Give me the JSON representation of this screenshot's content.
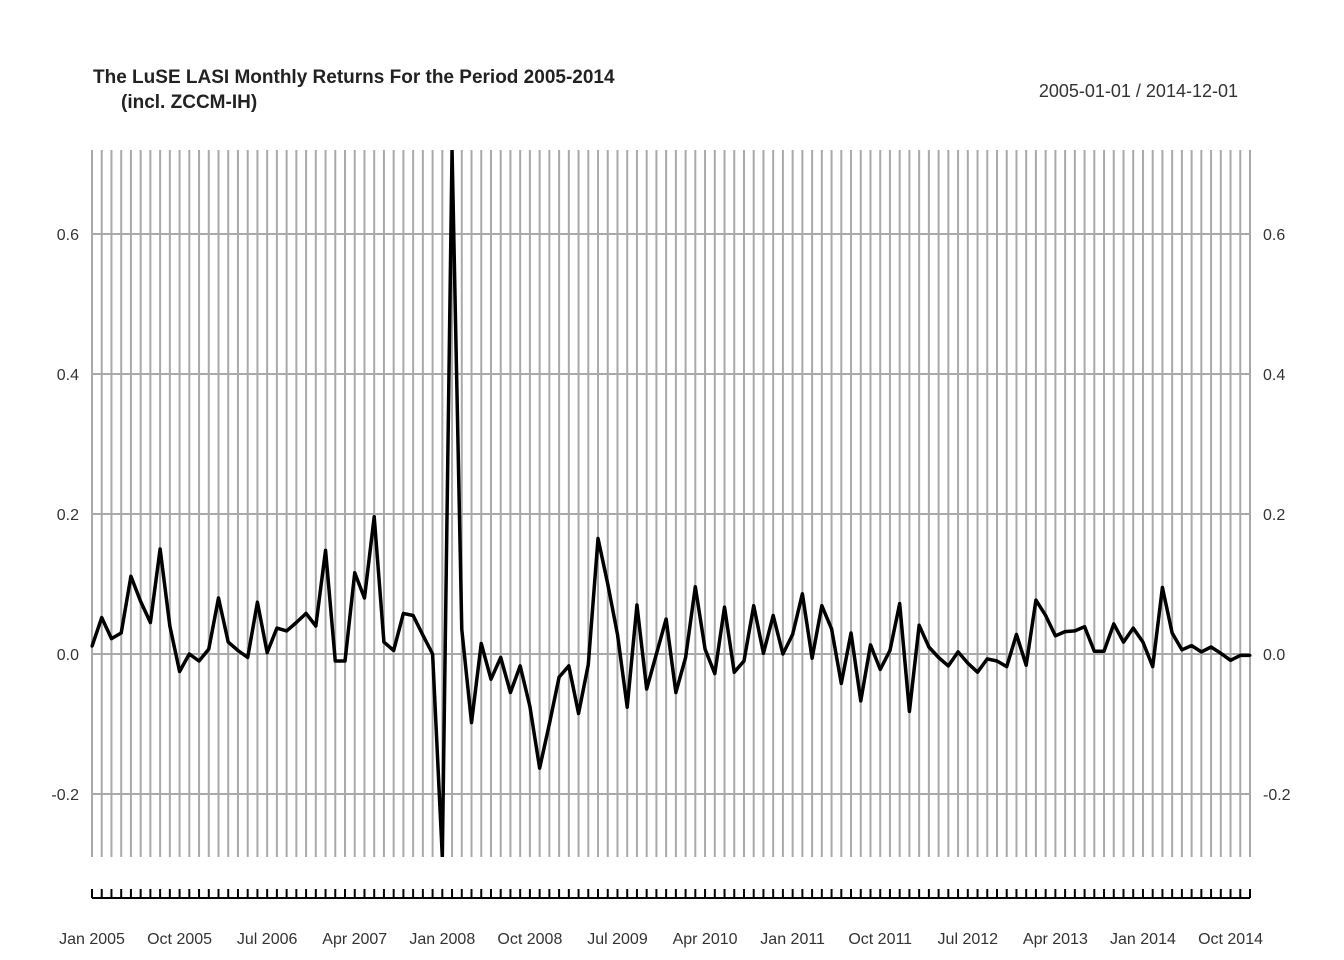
{
  "chart_data": {
    "type": "line",
    "title": "The LuSE LASI Monthly Returns For the Period 2005-2014",
    "subtitle": "(incl. ZCCM-IH)",
    "date_range": "2005-01-01 / 2014-12-01",
    "x_start": "2005-01",
    "frequency": "monthly",
    "ylim": [
      -0.29,
      0.72
    ],
    "y_ticks": [
      -0.2,
      0.0,
      0.2,
      0.4,
      0.6
    ],
    "y_tick_labels": [
      "-0.2",
      "0.0",
      "0.2",
      "0.4",
      "0.6"
    ],
    "x_tick_labels": [
      "Jan 2005",
      "Oct 2005",
      "Jul 2006",
      "Apr 2007",
      "Jan 2008",
      "Oct 2008",
      "Jul 2009",
      "Apr 2010",
      "Jan 2011",
      "Oct 2011",
      "Jul 2012",
      "Apr 2013",
      "Jan 2014",
      "Oct 2014"
    ],
    "x_tick_label_step": 9,
    "grid": true,
    "line_color": "#000000",
    "grid_color": "#a9a9a9",
    "series": [
      {
        "values": [
          0.011,
          0.052,
          0.022,
          0.03,
          0.111,
          0.075,
          0.045,
          0.15,
          0.04,
          -0.025,
          0.0,
          -0.01,
          0.007,
          0.08,
          0.017,
          0.005,
          -0.005,
          0.074,
          0.002,
          0.037,
          0.033,
          0.045,
          0.058,
          0.04,
          0.148,
          -0.01,
          -0.01,
          0.116,
          0.08,
          0.196,
          0.017,
          0.005,
          0.058,
          0.055,
          0.027,
          0.0,
          -0.29,
          0.72,
          0.035,
          -0.098,
          0.015,
          -0.036,
          -0.005,
          -0.055,
          -0.017,
          -0.075,
          -0.163,
          -0.1,
          -0.033,
          -0.017,
          -0.085,
          -0.015,
          0.165,
          0.1,
          0.028,
          -0.076,
          0.07,
          -0.05,
          0.0,
          0.05,
          -0.055,
          -0.005,
          0.096,
          0.007,
          -0.028,
          0.067,
          -0.026,
          -0.01,
          0.069,
          0.001,
          0.055,
          0.0,
          0.028,
          0.086,
          -0.006,
          0.069,
          0.036,
          -0.042,
          0.03,
          -0.067,
          0.013,
          -0.022,
          0.005,
          0.072,
          -0.082,
          0.041,
          0.01,
          -0.005,
          -0.017,
          0.003,
          -0.013,
          -0.026,
          -0.007,
          -0.01,
          -0.018,
          0.028,
          -0.016,
          0.077,
          0.055,
          0.026,
          0.032,
          0.033,
          0.039,
          0.004,
          0.004,
          0.043,
          0.017,
          0.037,
          0.017,
          -0.018,
          0.095,
          0.03,
          0.006,
          0.012,
          0.003,
          0.01,
          0.001,
          -0.009,
          -0.002,
          -0.002
        ]
      }
    ]
  }
}
